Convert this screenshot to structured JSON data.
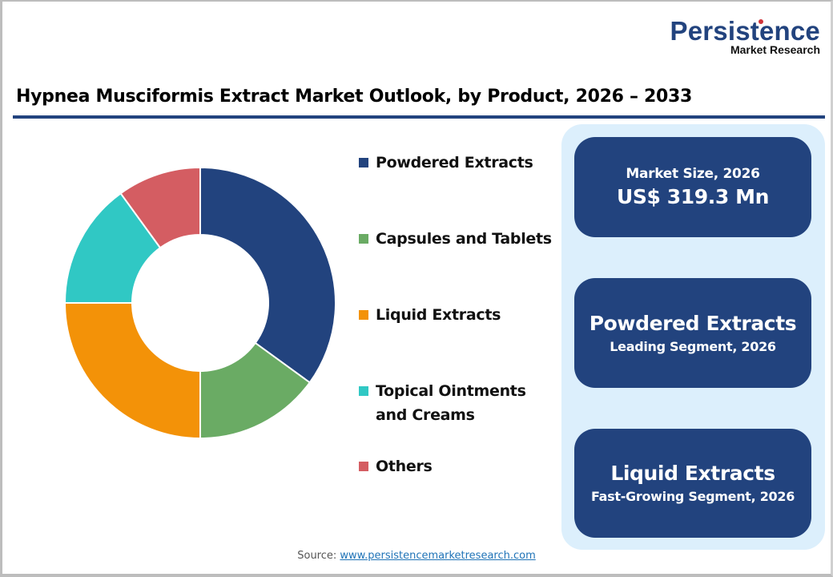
{
  "brand": {
    "name": "Persistence",
    "tagline": "Market Research"
  },
  "title": "Hypnea Musciformis Extract Market Outlook, by Product, 2026 – 2033",
  "chart_data": {
    "type": "pie",
    "variant": "donut",
    "title": "Hypnea Musciformis Extract Market Outlook, by Product, 2026 – 2033",
    "categories": [
      "Powdered Extracts",
      "Capsules and Tablets",
      "Liquid Extracts",
      "Topical Ointments and Creams",
      "Others"
    ],
    "values": [
      35,
      15,
      25,
      15,
      10
    ],
    "unit": "% share (estimated from slice angles)",
    "colors": [
      "#22437E",
      "#6AAB64",
      "#F39208",
      "#30C8C4",
      "#D45D62"
    ],
    "legend_position": "right",
    "start_angle": "12 o'clock, clockwise"
  },
  "legend": [
    {
      "label": "Powdered Extracts",
      "color": "#22437E"
    },
    {
      "label": "Capsules and Tablets",
      "color": "#6AAB64"
    },
    {
      "label": "Liquid Extracts",
      "color": "#F39208"
    },
    {
      "label": "Topical Ointments",
      "label2": "and Creams",
      "color": "#30C8C4"
    },
    {
      "label": "Others",
      "color": "#D45D62"
    }
  ],
  "cards": {
    "market_size": {
      "label": "Market Size, 2026",
      "value": "US$ 319.3 Mn"
    },
    "leading": {
      "value": "Powdered Extracts",
      "label": "Leading Segment, 2026"
    },
    "fast_growing": {
      "value": "Liquid Extracts",
      "label": "Fast-Growing Segment, 2026"
    }
  },
  "source": {
    "label": "Source:",
    "link": "www.persistencemarketresearch.com"
  },
  "colors": {
    "brand_navy": "#22437E",
    "panel_bg": "#DCEFFC"
  }
}
